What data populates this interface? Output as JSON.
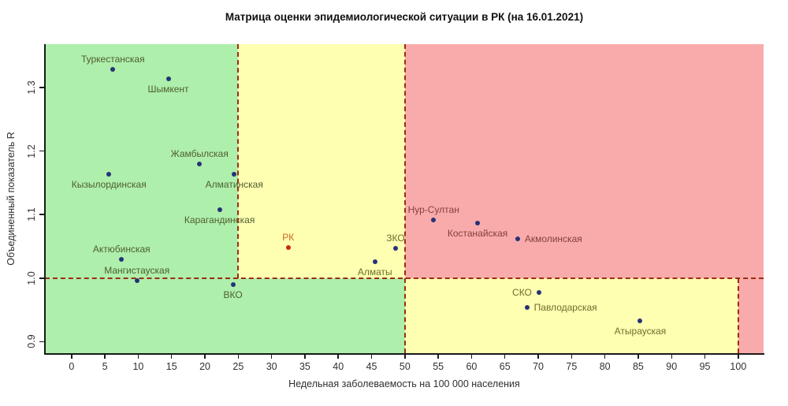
{
  "chart_data": {
    "type": "scatter",
    "title": "Матрица оценки эпидемиологической ситуации в РК (на 16.01.2021)",
    "xlabel": "Недельная заболеваемость на 100 000 населения",
    "ylabel": "Объединенный показатель R",
    "xlim": [
      -4,
      103.8
    ],
    "ylim": [
      0.882,
      1.368
    ],
    "x_ticks": [
      0,
      5,
      10,
      15,
      20,
      25,
      30,
      35,
      40,
      45,
      50,
      55,
      60,
      65,
      70,
      75,
      80,
      85,
      90,
      95,
      100
    ],
    "y_ticks": [
      "0.9",
      "1.0",
      "1.1",
      "1.2",
      "1.3"
    ],
    "grid": false,
    "legend": "none",
    "thresholds": {
      "x_low": 25,
      "x_mid": 50,
      "x_high": 100,
      "r": 1.0
    },
    "colors": {
      "green_zone": "#aeefab",
      "yellow_zone": "#ffffb2",
      "red_zone": "#f9abab",
      "dashed_line": "#992e12",
      "point": "#253377",
      "axis": "#1a1a1a",
      "rk_point": "#cc2810",
      "rk_label": "#c8691e"
    },
    "points": [
      {
        "name": "Туркестанская",
        "x": 6.2,
        "r": 1.328,
        "label_position": "above",
        "label_color": "#4f5f2e"
      },
      {
        "name": "Шымкент",
        "x": 14.5,
        "r": 1.314,
        "label_position": "below",
        "label_color": "#4f5f2e"
      },
      {
        "name": "Жамбылская",
        "x": 19.2,
        "r": 1.179,
        "label_position": "above",
        "label_color": "#4f5f2e"
      },
      {
        "name": "Кызылординская",
        "x": 5.6,
        "r": 1.163,
        "label_position": "below",
        "label_color": "#4f5f2e"
      },
      {
        "name": "Алматинская",
        "x": 24.4,
        "r": 1.163,
        "label_position": "below",
        "label_color": "#4f5f2e"
      },
      {
        "name": "Карагандинская",
        "x": 22.2,
        "r": 1.108,
        "label_position": "below",
        "label_color": "#4f5f2e"
      },
      {
        "name": "Актюбинская",
        "x": 7.5,
        "r": 1.03,
        "label_position": "above",
        "label_color": "#4f5f2e"
      },
      {
        "name": "Мангистауская",
        "x": 9.8,
        "r": 0.996,
        "label_position": "above",
        "label_color": "#4f5f2e"
      },
      {
        "name": "ВКО",
        "x": 24.2,
        "r": 0.99,
        "label_position": "below",
        "label_color": "#4f5f2e"
      },
      {
        "name": "РК",
        "x": 32.5,
        "r": 1.048,
        "label_position": "above",
        "label_color": "#c8691e",
        "point_color": "#cc2810"
      },
      {
        "name": "Алматы",
        "x": 45.5,
        "r": 1.026,
        "label_position": "below",
        "label_color": "#6e6e2c"
      },
      {
        "name": "ЗКО",
        "x": 48.6,
        "r": 1.047,
        "label_position": "above",
        "label_color": "#6e6e2c"
      },
      {
        "name": "Нур-Султан",
        "x": 54.3,
        "r": 1.091,
        "label_position": "above",
        "label_color": "#84403a"
      },
      {
        "name": "Костанайская",
        "x": 60.9,
        "r": 1.086,
        "label_position": "below",
        "label_color": "#84403a"
      },
      {
        "name": "Акмолинская",
        "x": 66.9,
        "r": 1.062,
        "label_position": "right",
        "label_color": "#84403a"
      },
      {
        "name": "СКО",
        "x": 70.1,
        "r": 0.977,
        "label_position": "left",
        "label_color": "#6e6e2c"
      },
      {
        "name": "Павлодарская",
        "x": 68.3,
        "r": 0.954,
        "label_position": "right",
        "label_color": "#6e6e2c"
      },
      {
        "name": "Атырауская",
        "x": 85.3,
        "r": 0.933,
        "label_position": "below",
        "label_color": "#6e6e2c"
      }
    ]
  }
}
